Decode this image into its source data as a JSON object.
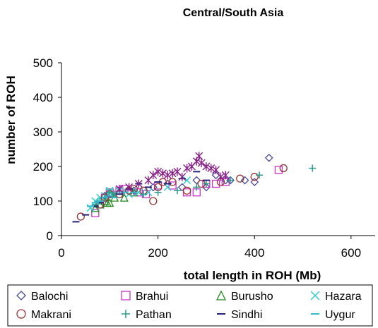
{
  "chart_data": {
    "type": "scatter",
    "title": "Central/South Asia",
    "xlabel": "total length in ROH (Mb)",
    "ylabel": "number of ROH",
    "xlim": [
      0,
      650
    ],
    "ylim": [
      0,
      500
    ],
    "xticks": [
      "0",
      "200",
      "400",
      "600"
    ],
    "yticks": [
      "0",
      "100",
      "200",
      "300",
      "400",
      "500"
    ],
    "grid": false,
    "legend_position": "bottom",
    "series": [
      {
        "name": "Balochi",
        "marker": "diamond-icon",
        "color": "#4a4a9c",
        "points": [
          [
            90,
            115
          ],
          [
            100,
            120
          ],
          [
            150,
            130
          ],
          [
            190,
            140
          ],
          [
            220,
            150
          ],
          [
            250,
            140
          ],
          [
            280,
            160
          ],
          [
            300,
            140
          ],
          [
            320,
            175
          ],
          [
            340,
            160
          ],
          [
            350,
            160
          ],
          [
            380,
            160
          ],
          [
            400,
            155
          ],
          [
            430,
            225
          ]
        ]
      },
      {
        "name": "Brahui",
        "marker": "square-icon",
        "color": "#cc33cc",
        "points": [
          [
            70,
            65
          ],
          [
            80,
            90
          ],
          [
            90,
            110
          ],
          [
            100,
            125
          ],
          [
            120,
            130
          ],
          [
            130,
            135
          ],
          [
            160,
            125
          ],
          [
            175,
            120
          ],
          [
            200,
            145
          ],
          [
            230,
            145
          ],
          [
            260,
            125
          ],
          [
            280,
            125
          ],
          [
            300,
            150
          ],
          [
            320,
            150
          ],
          [
            340,
            155
          ],
          [
            450,
            190
          ]
        ]
      },
      {
        "name": "Burusho",
        "marker": "triangle-icon",
        "color": "#228822",
        "points": [
          [
            70,
            80
          ],
          [
            80,
            90
          ],
          [
            90,
            100
          ],
          [
            95,
            95
          ],
          [
            100,
            95
          ],
          [
            110,
            110
          ],
          [
            130,
            110
          ],
          [
            150,
            125
          ]
        ]
      },
      {
        "name": "Hazara",
        "marker": "x-icon",
        "color": "#33cccc",
        "points": [
          [
            60,
            80
          ],
          [
            70,
            100
          ],
          [
            80,
            110
          ],
          [
            90,
            115
          ],
          [
            100,
            125
          ],
          [
            100,
            130
          ],
          [
            110,
            120
          ],
          [
            120,
            130
          ],
          [
            140,
            120
          ],
          [
            160,
            125
          ],
          [
            180,
            125
          ],
          [
            220,
            140
          ],
          [
            260,
            160
          ]
        ]
      },
      {
        "name": "Makrani",
        "marker": "circle-icon",
        "color": "#993333",
        "points": [
          [
            40,
            55
          ],
          [
            80,
            90
          ],
          [
            90,
            110
          ],
          [
            100,
            120
          ],
          [
            120,
            120
          ],
          [
            140,
            130
          ],
          [
            150,
            135
          ],
          [
            170,
            130
          ],
          [
            190,
            100
          ],
          [
            200,
            140
          ],
          [
            210,
            155
          ],
          [
            230,
            155
          ],
          [
            260,
            130
          ],
          [
            290,
            150
          ],
          [
            330,
            155
          ],
          [
            370,
            165
          ],
          [
            400,
            170
          ],
          [
            460,
            195
          ]
        ]
      },
      {
        "name": "Pathan",
        "marker": "plus-icon",
        "color": "#2a9a8a",
        "points": [
          [
            70,
            90
          ],
          [
            80,
            100
          ],
          [
            90,
            110
          ],
          [
            100,
            125
          ],
          [
            110,
            120
          ],
          [
            130,
            125
          ],
          [
            150,
            125
          ],
          [
            170,
            120
          ],
          [
            200,
            125
          ],
          [
            240,
            130
          ],
          [
            280,
            140
          ],
          [
            300,
            150
          ],
          [
            350,
            160
          ],
          [
            410,
            175
          ],
          [
            520,
            195
          ]
        ]
      },
      {
        "name": "Sindhi",
        "marker": "dash-icon",
        "color": "#222277",
        "points": [
          [
            30,
            40
          ],
          [
            50,
            60
          ],
          [
            70,
            85
          ],
          [
            80,
            95
          ],
          [
            90,
            110
          ],
          [
            100,
            115
          ],
          [
            120,
            120
          ],
          [
            140,
            135
          ],
          [
            160,
            150
          ],
          [
            180,
            140
          ],
          [
            200,
            155
          ],
          [
            220,
            150
          ],
          [
            250,
            165
          ],
          [
            280,
            185
          ],
          [
            300,
            160
          ]
        ]
      },
      {
        "name": "Uygur",
        "marker": "dash-icon",
        "color": "#33bbcc",
        "points": [
          [
            60,
            85
          ],
          [
            70,
            95
          ],
          [
            80,
            100
          ],
          [
            90,
            110
          ],
          [
            100,
            115
          ],
          [
            110,
            110
          ],
          [
            130,
            125
          ],
          [
            150,
            125
          ]
        ]
      },
      {
        "name": "",
        "marker": "star-icon",
        "color": "#882288",
        "points": [
          [
            120,
            135
          ],
          [
            140,
            140
          ],
          [
            160,
            150
          ],
          [
            180,
            160
          ],
          [
            190,
            175
          ],
          [
            200,
            185
          ],
          [
            210,
            180
          ],
          [
            220,
            175
          ],
          [
            230,
            180
          ],
          [
            240,
            185
          ],
          [
            250,
            170
          ],
          [
            260,
            195
          ],
          [
            270,
            200
          ],
          [
            280,
            215
          ],
          [
            285,
            230
          ],
          [
            290,
            210
          ],
          [
            300,
            200
          ],
          [
            310,
            195
          ],
          [
            320,
            190
          ],
          [
            330,
            170
          ],
          [
            340,
            175
          ]
        ]
      }
    ]
  }
}
